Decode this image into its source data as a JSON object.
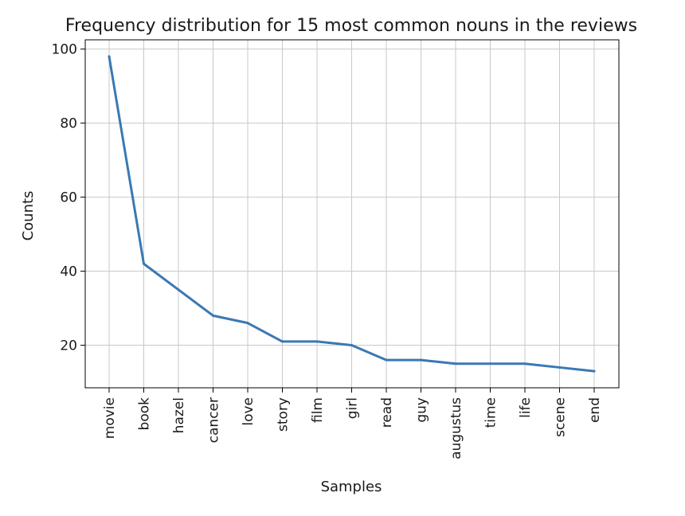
{
  "chart_data": {
    "type": "line",
    "title": "Frequency distribution for 15 most common nouns in the reviews",
    "xlabel": "Samples",
    "ylabel": "Counts",
    "categories": [
      "movie",
      "book",
      "hazel",
      "cancer",
      "love",
      "story",
      "film",
      "girl",
      "read",
      "guy",
      "augustus",
      "time",
      "life",
      "scene",
      "end"
    ],
    "series": [
      {
        "values": [
          98,
          42,
          35,
          28,
          26,
          21,
          21,
          20,
          16,
          16,
          15,
          15,
          15,
          14,
          13
        ]
      }
    ],
    "ylim": [
      8.5,
      102.5
    ],
    "yticks": [
      20,
      40,
      60,
      80,
      100
    ],
    "grid": true,
    "line_color": "#3a78b4",
    "grid_color": "#c8c8c8"
  }
}
